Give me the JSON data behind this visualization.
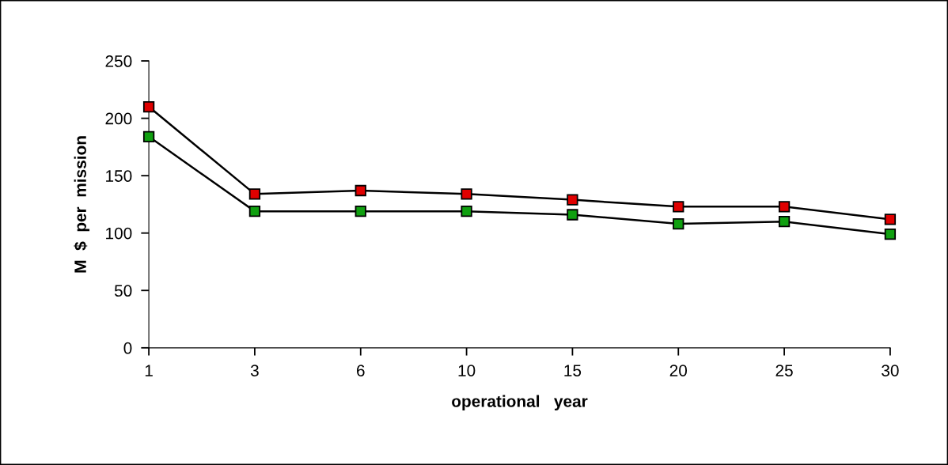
{
  "chart_data": {
    "type": "line",
    "xlabel": "operational   year",
    "ylabel": "M  $  per  mission",
    "categories": [
      "1",
      "3",
      "6",
      "10",
      "15",
      "20",
      "25",
      "30"
    ],
    "series": [
      {
        "color": "#e00000",
        "values": [
          210,
          134,
          137,
          134,
          129,
          123,
          123,
          112
        ]
      },
      {
        "color": "#10a010",
        "values": [
          184,
          119,
          119,
          119,
          116,
          108,
          110,
          99
        ]
      }
    ],
    "ylim": [
      0,
      250
    ],
    "yticks": [
      0,
      50,
      100,
      150,
      200,
      250
    ],
    "marker": "square",
    "line_style": "solid",
    "grid": false,
    "legend": false
  }
}
